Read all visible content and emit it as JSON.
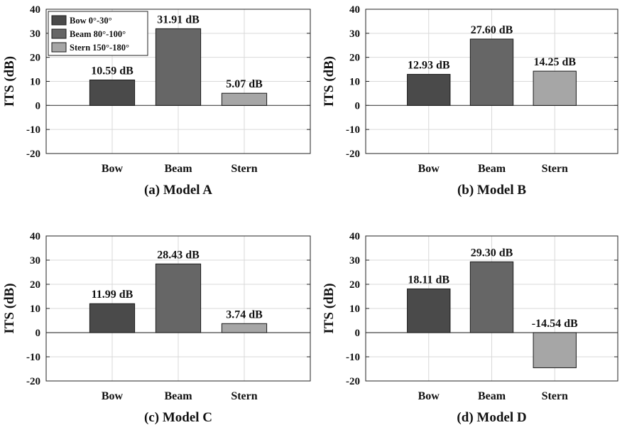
{
  "chart_data": [
    {
      "type": "bar",
      "caption": "(a) Model A",
      "ylabel": "ITS (dB)",
      "ylim": [
        -20,
        40
      ],
      "yticks": [
        40,
        30,
        20,
        10,
        0,
        -10,
        -20
      ],
      "grid": true,
      "categories": [
        "Bow",
        "Beam",
        "Stern"
      ],
      "values": [
        10.59,
        31.91,
        5.07
      ],
      "data_labels": [
        "10.59 dB",
        "31.91 dB",
        "5.07 dB"
      ],
      "legend": {
        "position": "top-left",
        "entries": [
          "Bow 0°-30°",
          "Beam 80°-100°",
          "Stern 150°-180°"
        ]
      }
    },
    {
      "type": "bar",
      "caption": "(b) Model B",
      "ylabel": "ITS (dB)",
      "ylim": [
        -20,
        40
      ],
      "yticks": [
        40,
        30,
        20,
        10,
        0,
        -10,
        -20
      ],
      "grid": true,
      "categories": [
        "Bow",
        "Beam",
        "Stern"
      ],
      "values": [
        12.93,
        27.6,
        14.25
      ],
      "data_labels": [
        "12.93 dB",
        "27.60 dB",
        "14.25 dB"
      ]
    },
    {
      "type": "bar",
      "caption": "(c) Model C",
      "ylabel": "ITS (dB)",
      "ylim": [
        -20,
        40
      ],
      "yticks": [
        40,
        30,
        20,
        10,
        0,
        -10,
        -20
      ],
      "grid": true,
      "categories": [
        "Bow",
        "Beam",
        "Stern"
      ],
      "values": [
        11.99,
        28.43,
        3.74
      ],
      "data_labels": [
        "11.99 dB",
        "28.43 dB",
        "3.74 dB"
      ]
    },
    {
      "type": "bar",
      "caption": "(d) Model D",
      "ylabel": "ITS (dB)",
      "ylim": [
        -20,
        40
      ],
      "yticks": [
        40,
        30,
        20,
        10,
        0,
        -10,
        -20
      ],
      "grid": true,
      "categories": [
        "Bow",
        "Beam",
        "Stern"
      ],
      "values": [
        18.11,
        29.3,
        -14.54
      ],
      "data_labels": [
        "18.11 dB",
        "29.30 dB",
        "-14.54 dB"
      ]
    }
  ],
  "colors": {
    "bow": "#4a4a4a",
    "beam": "#666666",
    "stern": "#a6a6a6",
    "grid": "#d9d9d9",
    "axis": "#222222"
  }
}
